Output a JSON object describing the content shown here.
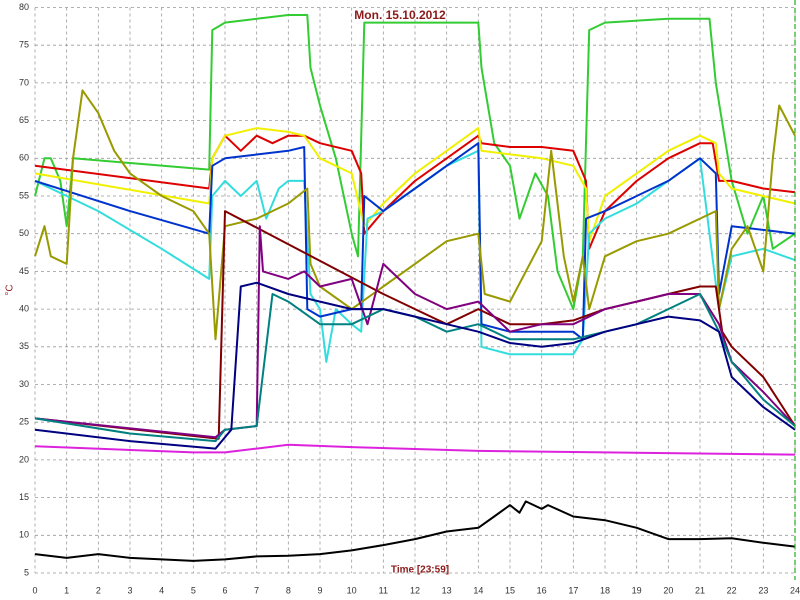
{
  "chart_data": {
    "type": "line",
    "title": "Mon. 15.10.2012",
    "x_label": "Time [23:59]",
    "y_label": "°C",
    "xlim": [
      0,
      24
    ],
    "xticks": [
      0,
      1,
      2,
      3,
      4,
      5,
      6,
      7,
      8,
      9,
      10,
      11,
      12,
      13,
      14,
      15,
      16,
      17,
      18,
      19,
      20,
      21,
      22,
      23,
      24
    ],
    "ylim": [
      5,
      80
    ],
    "yticks": [
      5,
      10,
      15,
      20,
      25,
      30,
      35,
      40,
      45,
      50,
      55,
      60,
      65,
      70,
      75,
      80
    ],
    "grid": true,
    "series": [
      {
        "color": "#33cc33",
        "x": [
          0,
          0.3,
          0.5,
          0.8,
          1,
          1.2,
          5.5,
          5.6,
          6,
          7,
          8,
          8.6,
          8.7,
          9,
          9.5,
          10,
          10.2,
          10.4,
          11,
          13,
          14,
          14.1,
          14.5,
          15,
          15.3,
          15.8,
          16.2,
          16.5,
          17,
          17.3,
          17.5,
          18,
          20,
          21.3,
          21.5,
          22,
          22.5,
          23,
          23.3,
          24
        ],
        "values": [
          55,
          60,
          60,
          57,
          51,
          60,
          58.5,
          77,
          78,
          78.5,
          79,
          79,
          72,
          67,
          60,
          50,
          47,
          78,
          78,
          78,
          78,
          72,
          62,
          59,
          52,
          58,
          55,
          45,
          40,
          47,
          77,
          78,
          78.5,
          78.5,
          70,
          57,
          50,
          55,
          48,
          50
        ]
      },
      {
        "color": "#dd0000",
        "x": [
          0,
          5.5,
          5.6,
          6,
          6.5,
          7,
          7.5,
          8,
          8.5,
          9,
          10,
          10.3,
          10.4,
          11,
          12,
          13,
          14,
          14.1,
          15,
          16,
          17,
          17.4,
          17.5,
          18,
          19,
          20,
          21,
          21.4,
          21.6,
          22,
          23,
          24
        ],
        "values": [
          59,
          56,
          60,
          63,
          61,
          63,
          62,
          63,
          63,
          62,
          61,
          58,
          50,
          53,
          57,
          60,
          63,
          62,
          61.5,
          61.5,
          61,
          57,
          48,
          53,
          57,
          60,
          62,
          62,
          57,
          57,
          56,
          55.5
        ]
      },
      {
        "color": "#f0f000",
        "x": [
          0,
          5.5,
          5.6,
          6,
          7,
          8,
          8.5,
          9,
          10,
          10.4,
          11,
          12,
          13,
          14,
          14.1,
          16,
          17,
          17.4,
          17.5,
          18,
          19,
          20,
          21,
          21.5,
          21.6,
          22,
          23,
          24
        ],
        "values": [
          58,
          54,
          60,
          63,
          64,
          63.5,
          63,
          60,
          58,
          51,
          54,
          58,
          61,
          64,
          61,
          60,
          59,
          56,
          49,
          55,
          58,
          61,
          63,
          62,
          58,
          56,
          55,
          54
        ]
      },
      {
        "color": "#33dddd",
        "x": [
          0,
          2,
          4,
          5.5,
          5.6,
          6,
          6.5,
          7,
          7.3,
          7.7,
          8,
          8.5,
          8.7,
          9,
          9.2,
          9.5,
          10,
          10.3,
          10.5,
          11,
          12,
          13,
          14,
          14.1,
          15,
          16,
          17,
          17.3,
          17.5,
          18,
          19,
          20,
          21,
          21.6,
          22,
          23,
          24
        ],
        "values": [
          57,
          53,
          48,
          44,
          55,
          57,
          55,
          57,
          52,
          56,
          57,
          57,
          42,
          40,
          33,
          40,
          38,
          37,
          52,
          53,
          56,
          59,
          61,
          35,
          34,
          34,
          34,
          36,
          50,
          52,
          54,
          57,
          60,
          40,
          47,
          48,
          46.5
        ]
      },
      {
        "color": "#0033cc",
        "x": [
          0,
          3,
          5.5,
          5.6,
          6,
          7,
          8,
          8.5,
          8.6,
          9,
          10,
          10.3,
          10.4,
          11,
          12,
          13,
          14,
          14.1,
          15,
          17,
          17.3,
          17.4,
          18,
          19,
          20,
          21,
          21.5,
          21.6,
          22,
          23,
          24
        ],
        "values": [
          57,
          53,
          50,
          59,
          60,
          60.5,
          61,
          61.5,
          40,
          39,
          40,
          40,
          55,
          53,
          56,
          59,
          62,
          38,
          37,
          37,
          36,
          52,
          53,
          55,
          57,
          60,
          58,
          42,
          51,
          50.5,
          50
        ]
      },
      {
        "color": "#999900",
        "x": [
          0,
          0.3,
          0.5,
          1,
          1.2,
          1.5,
          2,
          2.5,
          3,
          4,
          5,
          5.5,
          5.7,
          6,
          7,
          8,
          8.6,
          8.7,
          9,
          10,
          11,
          12,
          13,
          14,
          14.2,
          15,
          16,
          16.3,
          16.7,
          17,
          17.3,
          17.5,
          18,
          19,
          20,
          21,
          21.5,
          21.6,
          22,
          22.5,
          23,
          23.3,
          23.5,
          24
        ],
        "values": [
          47,
          51,
          47,
          46,
          60,
          69,
          66,
          61,
          58,
          55,
          53,
          50,
          36,
          51,
          52,
          54,
          56,
          46,
          43,
          40,
          43,
          46,
          49,
          50,
          42,
          41,
          49,
          61,
          47,
          41,
          47,
          40,
          47,
          49,
          50,
          52,
          53,
          40,
          48,
          51,
          45,
          60,
          67,
          63
        ]
      },
      {
        "color": "#800000",
        "x": [
          0,
          5.8,
          6,
          11,
          12,
          13,
          14,
          15,
          16,
          17,
          18,
          19,
          20,
          21,
          21.5,
          21.7,
          22,
          23,
          24
        ],
        "values": [
          25.5,
          22.8,
          53,
          42,
          40,
          38,
          40,
          38,
          38,
          38.5,
          40,
          41,
          42,
          43,
          43,
          37,
          35,
          31,
          24.5
        ]
      },
      {
        "color": "#800080",
        "x": [
          0,
          5.7,
          6,
          7,
          7.1,
          7.2,
          8,
          8.5,
          9,
          10,
          10.5,
          11,
          12,
          13,
          14,
          15,
          16,
          17,
          18,
          19,
          20,
          21,
          21.6,
          22,
          23,
          24
        ],
        "values": [
          25.5,
          23,
          24,
          24.5,
          51,
          45,
          44,
          45,
          43,
          44,
          38,
          46,
          42,
          40,
          41,
          37,
          38,
          38,
          40,
          41,
          42,
          42,
          38,
          33,
          29,
          24.5
        ]
      },
      {
        "color": "#008080",
        "x": [
          0,
          3,
          5.7,
          6,
          7,
          7.5,
          8,
          9,
          10,
          11,
          12,
          13,
          14,
          15,
          16,
          17,
          18,
          19,
          20,
          21,
          21.6,
          22,
          23,
          24
        ],
        "values": [
          25.5,
          23.5,
          22.5,
          24,
          24.5,
          42,
          41,
          38,
          38,
          40,
          39,
          37,
          38,
          36,
          36,
          36,
          37,
          38,
          40,
          42,
          37,
          33,
          28,
          24.5
        ]
      },
      {
        "color": "#000080",
        "x": [
          0,
          3,
          5.7,
          6.2,
          6.5,
          7,
          8,
          9,
          10,
          11,
          12,
          13,
          14,
          15,
          16,
          17,
          18,
          19,
          20,
          21,
          21.6,
          22,
          23,
          24
        ],
        "values": [
          24,
          22.5,
          21.5,
          24,
          43,
          43.5,
          42,
          41,
          40,
          40,
          39,
          38,
          37,
          35.5,
          35,
          35.5,
          37,
          38,
          39,
          38.5,
          37,
          31,
          27,
          24
        ]
      },
      {
        "color": "#dd22dd",
        "x": [
          0,
          5,
          6,
          7,
          8,
          10,
          14,
          18,
          24
        ],
        "values": [
          21.8,
          21,
          21,
          21.5,
          22,
          21.7,
          21.2,
          21,
          20.7
        ]
      },
      {
        "color": "#000000",
        "x": [
          0,
          1,
          2,
          3,
          4,
          5,
          6,
          7,
          8,
          9,
          10,
          11,
          12,
          13,
          14,
          14.5,
          15,
          15.3,
          15.5,
          16,
          16.2,
          17,
          18,
          19,
          20,
          21,
          22,
          23,
          24
        ],
        "values": [
          7.5,
          7,
          7.5,
          7,
          6.8,
          6.6,
          6.8,
          7.2,
          7.3,
          7.5,
          8,
          8.7,
          9.5,
          10.5,
          11,
          12.5,
          14,
          13,
          14.5,
          13.5,
          14,
          12.5,
          12,
          11,
          9.5,
          9.5,
          9.6,
          9,
          8.5
        ]
      }
    ]
  }
}
